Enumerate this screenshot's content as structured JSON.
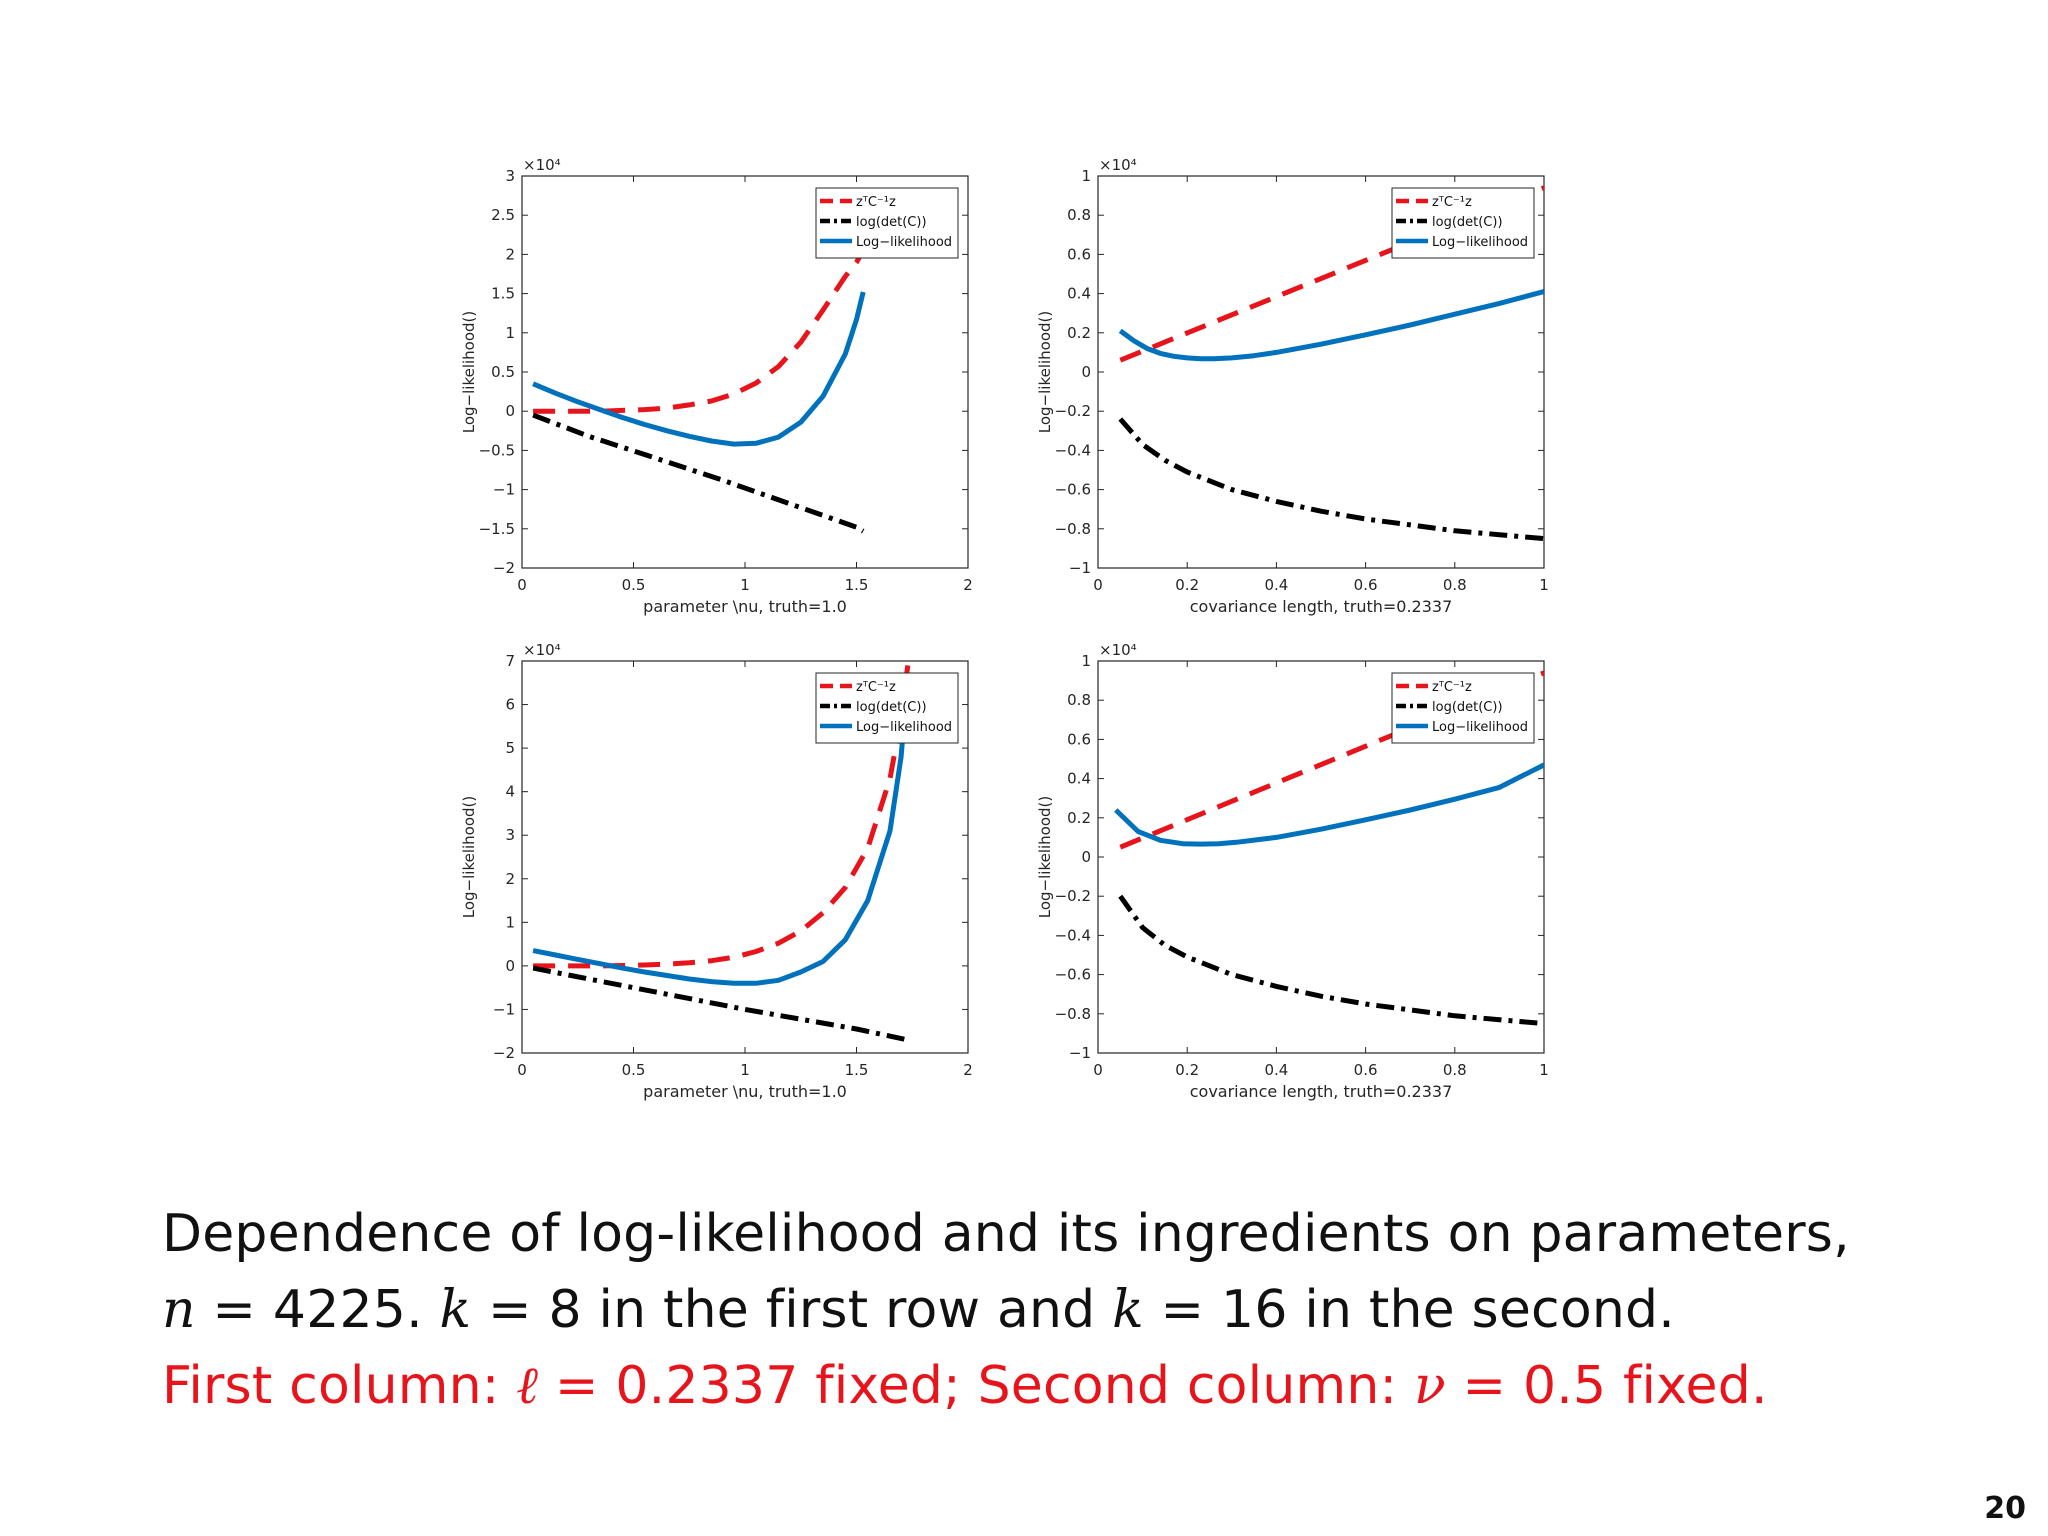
{
  "chart_data": [
    {
      "type": "line",
      "panel": "row1-col1",
      "exponent_label": "×10⁴",
      "xlabel": "parameter \\nu, truth=1.0",
      "ylabel": "Log−likelihood()",
      "xlim": [
        0,
        2
      ],
      "ylim": [
        -2,
        3
      ],
      "xticks": [
        0,
        0.5,
        1,
        1.5,
        2
      ],
      "xtick_labels": [
        "0",
        "0.5",
        "1",
        "1.5",
        "2"
      ],
      "yticks": [
        -2,
        -1.5,
        -1,
        -0.5,
        0,
        0.5,
        1,
        1.5,
        2,
        2.5,
        3
      ],
      "ytick_labels": [
        "−2",
        "−1.5",
        "−1",
        "−0.5",
        "0",
        "0.5",
        "1",
        "1.5",
        "2",
        "2.5",
        "3"
      ],
      "legend_position": "top-right",
      "series": [
        {
          "name": "zᵀC⁻¹z",
          "color": "#e8141b",
          "dash": "dashed",
          "x": [
            0.05,
            0.15,
            0.25,
            0.35,
            0.45,
            0.55,
            0.65,
            0.75,
            0.85,
            0.95,
            1.05,
            1.15,
            1.25,
            1.35,
            1.45,
            1.5,
            1.53
          ],
          "y": [
            0,
            0,
            0,
            0,
            0.01,
            0.02,
            0.04,
            0.08,
            0.13,
            0.22,
            0.36,
            0.57,
            0.88,
            1.29,
            1.72,
            1.9,
            2.05
          ]
        },
        {
          "name": "log(det(C))",
          "color": "#000000",
          "dash": "dashdot",
          "x": [
            0.05,
            0.3,
            0.6,
            0.9,
            1.2,
            1.5,
            1.53
          ],
          "y": [
            -0.05,
            -0.32,
            -0.6,
            -0.88,
            -1.18,
            -1.48,
            -1.53
          ]
        },
        {
          "name": "Log−likelihood",
          "color": "#0072bd",
          "dash": "solid",
          "x": [
            0.05,
            0.15,
            0.25,
            0.35,
            0.45,
            0.55,
            0.65,
            0.75,
            0.85,
            0.95,
            1.05,
            1.15,
            1.25,
            1.35,
            1.45,
            1.5,
            1.53
          ],
          "y": [
            0.35,
            0.23,
            0.12,
            0.02,
            -0.08,
            -0.17,
            -0.25,
            -0.32,
            -0.38,
            -0.42,
            -0.41,
            -0.33,
            -0.14,
            0.19,
            0.73,
            1.17,
            1.52
          ]
        }
      ]
    },
    {
      "type": "line",
      "panel": "row1-col2",
      "exponent_label": "×10⁴",
      "xlabel": "covariance length, truth=0.2337",
      "ylabel": "Log−likelihood()",
      "xlim": [
        0,
        1
      ],
      "ylim": [
        -1,
        1
      ],
      "xticks": [
        0,
        0.2,
        0.4,
        0.6,
        0.8,
        1
      ],
      "xtick_labels": [
        "0",
        "0.2",
        "0.4",
        "0.6",
        "0.8",
        "1"
      ],
      "yticks": [
        -1,
        -0.8,
        -0.6,
        -0.4,
        -0.2,
        0,
        0.2,
        0.4,
        0.6,
        0.8,
        1
      ],
      "ytick_labels": [
        "−1",
        "−0.8",
        "−0.6",
        "−0.4",
        "−0.2",
        "0",
        "0.2",
        "0.4",
        "0.6",
        "0.8",
        "1"
      ],
      "legend_position": "top-right",
      "series": [
        {
          "name": "zᵀC⁻¹z",
          "color": "#e8141b",
          "dash": "dashed",
          "x": [
            0.05,
            1.0
          ],
          "y": [
            0.06,
            0.94
          ]
        },
        {
          "name": "log(det(C))",
          "color": "#000000",
          "dash": "dashdot",
          "x": [
            0.05,
            0.1,
            0.15,
            0.2,
            0.3,
            0.4,
            0.5,
            0.6,
            0.7,
            0.8,
            0.9,
            1.0
          ],
          "y": [
            -0.24,
            -0.37,
            -0.45,
            -0.51,
            -0.6,
            -0.66,
            -0.71,
            -0.75,
            -0.78,
            -0.81,
            -0.83,
            -0.85
          ]
        },
        {
          "name": "Log−likelihood",
          "color": "#0072bd",
          "dash": "solid",
          "x": [
            0.05,
            0.08,
            0.11,
            0.14,
            0.17,
            0.2,
            0.23,
            0.26,
            0.3,
            0.35,
            0.4,
            0.5,
            0.6,
            0.7,
            0.8,
            0.9,
            1.0
          ],
          "y": [
            0.21,
            0.16,
            0.12,
            0.095,
            0.08,
            0.072,
            0.068,
            0.068,
            0.072,
            0.083,
            0.1,
            0.142,
            0.19,
            0.24,
            0.295,
            0.35,
            0.41
          ]
        }
      ]
    },
    {
      "type": "line",
      "panel": "row2-col1",
      "exponent_label": "×10⁴",
      "xlabel": "parameter \\nu, truth=1.0",
      "ylabel": "Log−likelihood()",
      "xlim": [
        0,
        2
      ],
      "ylim": [
        -2,
        7
      ],
      "xticks": [
        0,
        0.5,
        1,
        1.5,
        2
      ],
      "xtick_labels": [
        "0",
        "0.5",
        "1",
        "1.5",
        "2"
      ],
      "yticks": [
        -2,
        -1,
        0,
        1,
        2,
        3,
        4,
        5,
        6,
        7
      ],
      "ytick_labels": [
        "−2",
        "−1",
        "0",
        "1",
        "2",
        "3",
        "4",
        "5",
        "6",
        "7"
      ],
      "legend_position": "top-right",
      "series": [
        {
          "name": "zᵀC⁻¹z",
          "color": "#e8141b",
          "dash": "dashed",
          "x": [
            0.05,
            0.15,
            0.25,
            0.35,
            0.45,
            0.55,
            0.65,
            0.75,
            0.85,
            0.95,
            1.05,
            1.15,
            1.25,
            1.35,
            1.45,
            1.55,
            1.65,
            1.7,
            1.73
          ],
          "y": [
            0,
            0,
            0,
            0,
            0.01,
            0.02,
            0.04,
            0.07,
            0.12,
            0.2,
            0.33,
            0.52,
            0.8,
            1.22,
            1.8,
            2.7,
            4.3,
            5.7,
            6.9
          ]
        },
        {
          "name": "log(det(C))",
          "color": "#000000",
          "dash": "dashdot",
          "x": [
            0.05,
            0.5,
            1.0,
            1.5,
            1.73
          ],
          "y": [
            -0.05,
            -0.5,
            -1.0,
            -1.45,
            -1.7
          ]
        },
        {
          "name": "Log−likelihood",
          "color": "#0072bd",
          "dash": "solid",
          "x": [
            0.05,
            0.15,
            0.25,
            0.35,
            0.45,
            0.55,
            0.65,
            0.75,
            0.85,
            0.95,
            1.05,
            1.15,
            1.25,
            1.35,
            1.45,
            1.55,
            1.65,
            1.7,
            1.73
          ],
          "y": [
            0.35,
            0.25,
            0.15,
            0.05,
            -0.05,
            -0.14,
            -0.22,
            -0.3,
            -0.36,
            -0.4,
            -0.4,
            -0.33,
            -0.14,
            0.1,
            0.6,
            1.5,
            3.1,
            4.8,
            6.7
          ]
        }
      ]
    },
    {
      "type": "line",
      "panel": "row2-col2",
      "exponent_label": "×10⁴",
      "xlabel": "covariance length, truth=0.2337",
      "ylabel": "Log−likelihood()",
      "xlim": [
        0,
        1
      ],
      "ylim": [
        -1,
        1
      ],
      "xticks": [
        0,
        0.2,
        0.4,
        0.6,
        0.8,
        1
      ],
      "xtick_labels": [
        "0",
        "0.2",
        "0.4",
        "0.6",
        "0.8",
        "1"
      ],
      "yticks": [
        -1,
        -0.8,
        -0.6,
        -0.4,
        -0.2,
        0,
        0.2,
        0.4,
        0.6,
        0.8,
        1
      ],
      "ytick_labels": [
        "−1",
        "−0.8",
        "−0.6",
        "−0.4",
        "−0.2",
        "0",
        "0.2",
        "0.4",
        "0.6",
        "0.8",
        "1"
      ],
      "legend_position": "top-right",
      "series": [
        {
          "name": "zᵀC⁻¹z",
          "color": "#e8141b",
          "dash": "dashed",
          "x": [
            0.05,
            1.0
          ],
          "y": [
            0.05,
            0.94
          ]
        },
        {
          "name": "log(det(C))",
          "color": "#000000",
          "dash": "dashdot",
          "x": [
            0.05,
            0.1,
            0.15,
            0.2,
            0.3,
            0.4,
            0.5,
            0.6,
            0.7,
            0.8,
            0.9,
            1.0
          ],
          "y": [
            -0.2,
            -0.36,
            -0.45,
            -0.51,
            -0.6,
            -0.66,
            -0.71,
            -0.75,
            -0.78,
            -0.81,
            -0.83,
            -0.85
          ]
        },
        {
          "name": "Log−likelihood",
          "color": "#0072bd",
          "dash": "solid",
          "x": [
            0.04,
            0.09,
            0.14,
            0.19,
            0.23,
            0.27,
            0.31,
            0.4,
            0.5,
            0.6,
            0.7,
            0.8,
            0.9,
            1.0
          ],
          "y": [
            0.24,
            0.13,
            0.085,
            0.068,
            0.066,
            0.068,
            0.075,
            0.1,
            0.142,
            0.19,
            0.24,
            0.295,
            0.355,
            0.47
          ]
        }
      ]
    }
  ],
  "caption": {
    "line1": "Dependence of log-likelihood and its ingredients on parameters,",
    "line2": {
      "var_n": "n",
      "part_n_value": " = 4225.  ",
      "var_k1": "k",
      "part_k1_value": " = 8 in the first row and ",
      "var_k2": "k",
      "part_k2_value": " = 16 in the second."
    },
    "line3": {
      "part_a": "First column: ",
      "var_l": "ℓ",
      "part_b": " = 0.2337 fixed; Second column: ",
      "var_nu": "ν",
      "part_c": " = 0.5 fixed."
    }
  },
  "page_number": "20",
  "colors": {
    "red": "#e8141b",
    "black": "#000000",
    "blue": "#0072bd",
    "caption_red": "#e8141b"
  }
}
